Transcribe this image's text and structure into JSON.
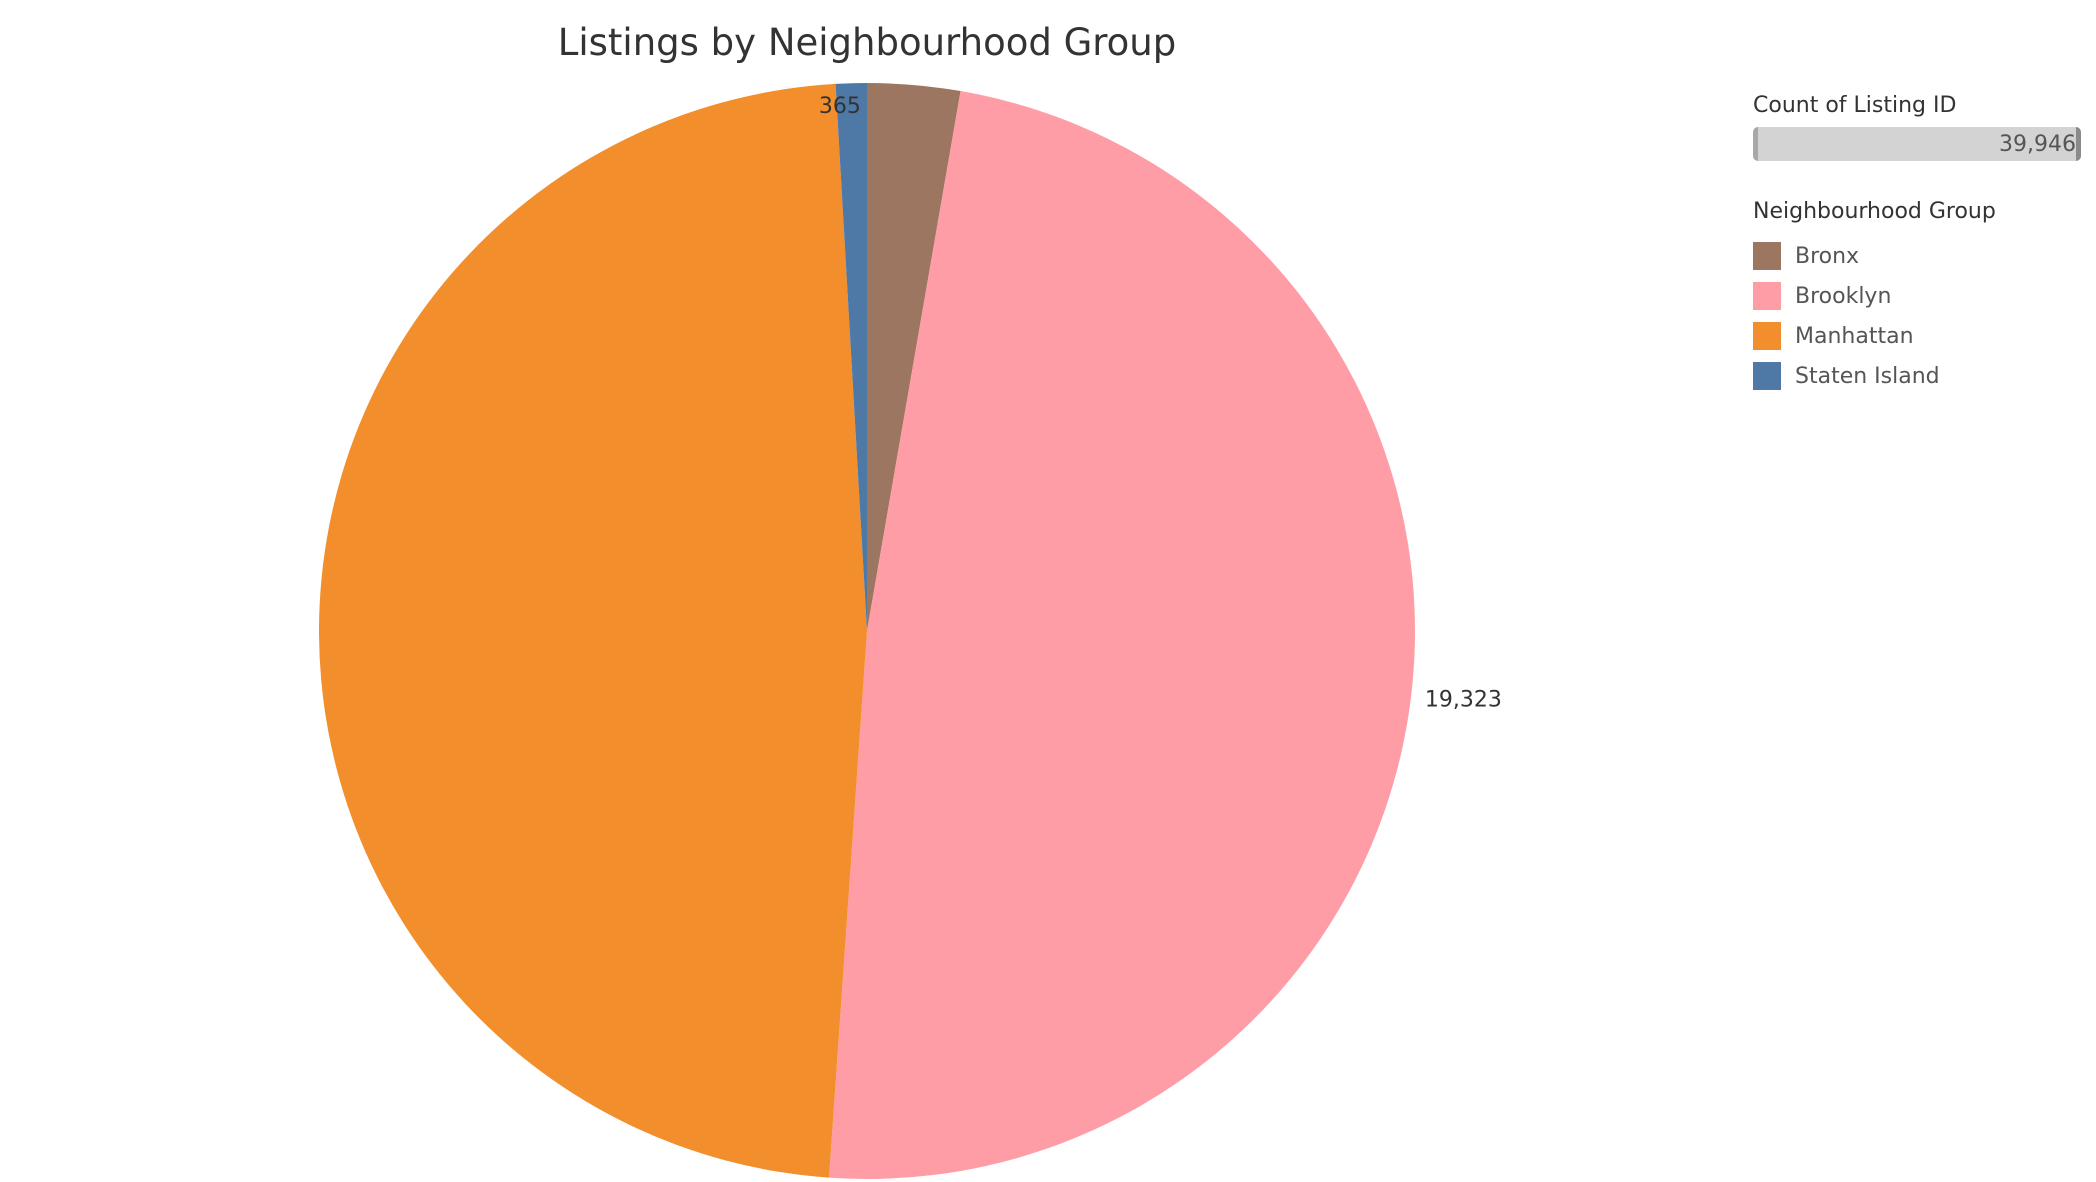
{
  "chart_data": {
    "type": "pie",
    "title": "Listings by Neighbourhood Group",
    "slices": [
      {
        "name": "Bronx",
        "value": 1091,
        "color": "#9c7660",
        "label": ""
      },
      {
        "name": "Brooklyn",
        "value": 19323,
        "color": "#ff9da7",
        "label": "19,323"
      },
      {
        "name": "Manhattan",
        "value": 19167,
        "color": "#f28e2b",
        "label": ""
      },
      {
        "name": "Staten Island",
        "value": 365,
        "color": "#4e79a7",
        "label": "365"
      }
    ],
    "start_angle_deg": 0,
    "direction": "clockwise",
    "size_legend": {
      "title": "Count of Listing ID",
      "max_label": "39,946"
    },
    "color_legend": {
      "title": "Neighbourhood Group",
      "placement": "right"
    }
  }
}
